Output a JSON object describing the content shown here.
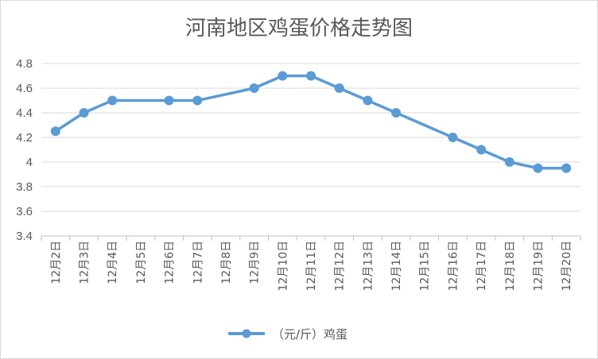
{
  "chart_data": {
    "type": "line",
    "title": "河南地区鸡蛋价格走势图",
    "categories": [
      "12月2日",
      "12月3日",
      "12月4日",
      "12月5日",
      "12月6日",
      "12月7日",
      "12月8日",
      "12月9日",
      "12月10日",
      "12月11日",
      "12月12日",
      "12月13日",
      "12月14日",
      "12月15日",
      "12月16日",
      "12月17日",
      "12月18日",
      "12月19日",
      "12月20日"
    ],
    "series": [
      {
        "name": "（元/斤）鸡蛋",
        "color": "#5b9bd5",
        "values": [
          4.25,
          4.4,
          4.5,
          null,
          4.5,
          4.5,
          null,
          4.6,
          4.7,
          4.7,
          4.6,
          4.5,
          4.4,
          null,
          4.2,
          4.1,
          4.0,
          3.95,
          3.95
        ]
      }
    ],
    "ylim": [
      3.4,
      4.8
    ],
    "yticks": [
      "3.4",
      "3.6",
      "3.8",
      "4",
      "4.2",
      "4.4",
      "4.6",
      "4.8"
    ],
    "grid": true,
    "legend": "bottom"
  }
}
